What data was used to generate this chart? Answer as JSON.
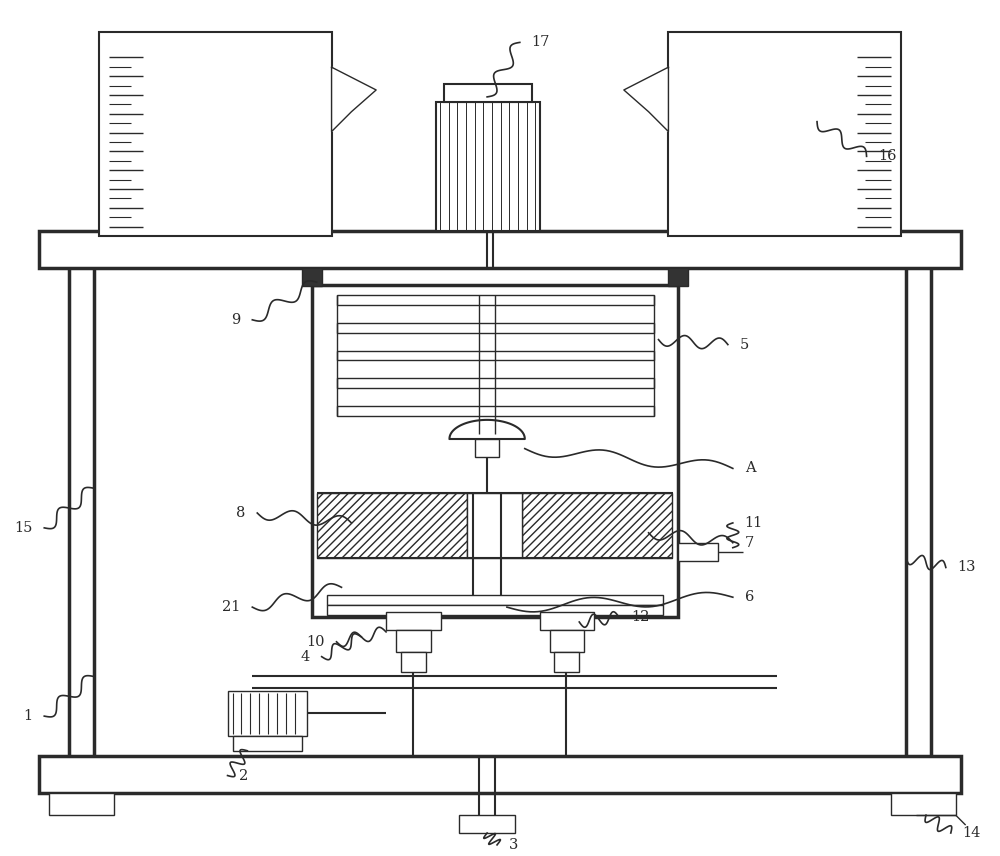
{
  "bg_color": "#ffffff",
  "line_color": "#2a2a2a",
  "fig_width": 10.0,
  "fig_height": 8.56
}
